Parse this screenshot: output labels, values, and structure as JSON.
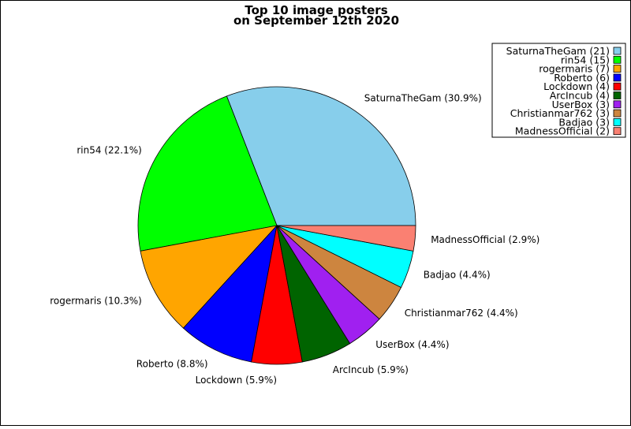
{
  "chart_data": {
    "type": "pie",
    "title_lines": [
      "Top 10 image posters",
      "on September 12th 2020"
    ],
    "slices": [
      {
        "name": "SaturnaTheGam",
        "value": 21,
        "percent_label": "30.9%",
        "color": "#87CEEB"
      },
      {
        "name": "rin54",
        "value": 15,
        "percent_label": "22.1%",
        "color": "#00FF00"
      },
      {
        "name": "rogermaris",
        "value": 7,
        "percent_label": "10.3%",
        "color": "#FFA500"
      },
      {
        "name": "Roberto",
        "value": 6,
        "percent_label": "8.8%",
        "color": "#0000FF"
      },
      {
        "name": "Lockdown",
        "value": 4,
        "percent_label": "5.9%",
        "color": "#FF0000"
      },
      {
        "name": "ArcIncub",
        "value": 4,
        "percent_label": "5.9%",
        "color": "#006400"
      },
      {
        "name": "UserBox",
        "value": 3,
        "percent_label": "4.4%",
        "color": "#A020F0"
      },
      {
        "name": "Christianmar762",
        "value": 3,
        "percent_label": "4.4%",
        "color": "#CD853F"
      },
      {
        "name": "Badjao",
        "value": 3,
        "percent_label": "4.4%",
        "color": "#00FFFF"
      },
      {
        "name": "MadnessOfficial",
        "value": 2,
        "percent_label": "2.9%",
        "color": "#FA8072"
      }
    ],
    "legend_placement": "top-right"
  }
}
